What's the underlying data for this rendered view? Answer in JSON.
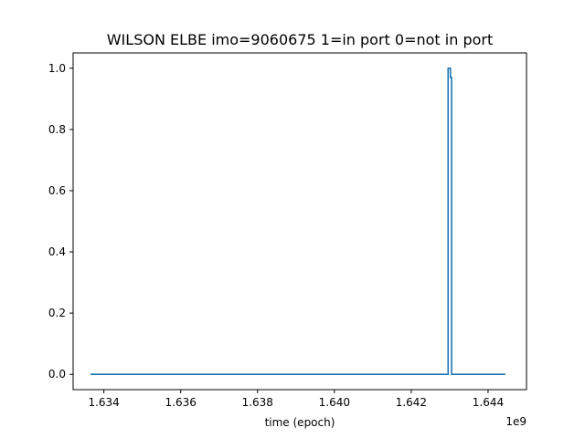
{
  "chart_data": {
    "type": "line",
    "title": "WILSON ELBE imo=9060675 1=in port 0=not in port",
    "xlabel": "time (epoch)",
    "ylabel": "",
    "x_offset_label": "1e9",
    "xlim": [
      1.6332,
      1.645
    ],
    "ylim": [
      -0.05,
      1.05
    ],
    "xticks": [
      1.634,
      1.636,
      1.638,
      1.64,
      1.642,
      1.644
    ],
    "xtick_labels": [
      "1.634",
      "1.636",
      "1.638",
      "1.640",
      "1.642",
      "1.644"
    ],
    "yticks": [
      0.0,
      0.2,
      0.4,
      0.6,
      0.8,
      1.0
    ],
    "ytick_labels": [
      "0.0",
      "0.2",
      "0.4",
      "0.6",
      "0.8",
      "1.0"
    ],
    "grid": false,
    "series": [
      {
        "color": "#1f77b4",
        "x": [
          1.63365,
          1.64296,
          1.64296,
          1.64302,
          1.64302,
          1.64305,
          1.64305,
          1.64445
        ],
        "y": [
          0,
          0,
          1,
          1,
          0.97,
          0.97,
          0,
          0
        ]
      }
    ]
  }
}
